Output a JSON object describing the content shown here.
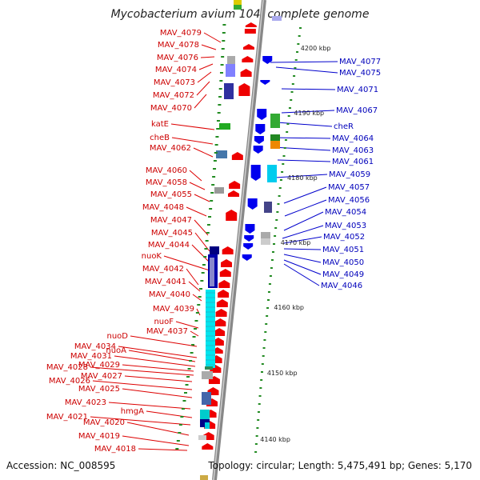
{
  "title": "Mycobacterium avium 104, complete genome",
  "footer": {
    "accession": "Accession: NC_008595",
    "summary": "Topology: circular; Length: 5,475,491 bp; Genes: 5,170"
  },
  "colors": {
    "forward_gene": "#ee0000",
    "reverse_gene": "#0000ee",
    "backbone": "#888888",
    "tick": "#228b22"
  },
  "scale_labels": [
    "4200 kbp",
    "4190 kbp",
    "4180 kbp",
    "4170 kbp",
    "4160 kbp",
    "4150 kbp",
    "4140 kbp"
  ],
  "left_genes": [
    "MAV_4079",
    "MAV_4078",
    "MAV_4076",
    "MAV_4074",
    "MAV_4073",
    "MAV_4072",
    "MAV_4070",
    "katE",
    "cheB",
    "MAV_4062",
    "MAV_4060",
    "MAV_4058",
    "MAV_4055",
    "MAV_4048",
    "MAV_4047",
    "MAV_4045",
    "MAV_4044",
    "nuoK",
    "MAV_4042",
    "MAV_4041",
    "MAV_4040",
    "MAV_4039",
    "nuoF",
    "MAV_4037",
    "nuoD",
    "MAV_4034",
    "nuoA",
    "MAV_4031",
    "MAV_4029",
    "MAV_4028",
    "MAV_4027",
    "MAV_4026",
    "MAV_4025",
    "MAV_4023",
    "hmgA",
    "MAV_4021",
    "MAV_4020",
    "MAV_4019",
    "MAV_4018"
  ],
  "right_genes": [
    "MAV_4077",
    "MAV_4075",
    "MAV_4071",
    "MAV_4067",
    "cheR",
    "MAV_4064",
    "MAV_4063",
    "MAV_4061",
    "MAV_4059",
    "MAV_4057",
    "MAV_4056",
    "MAV_4054",
    "MAV_4053",
    "MAV_4052",
    "MAV_4051",
    "MAV_4050",
    "MAV_4049",
    "MAV_4046"
  ]
}
